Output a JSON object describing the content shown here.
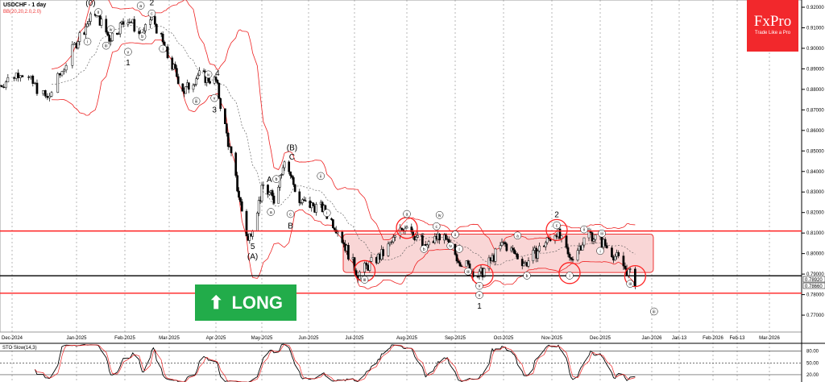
{
  "header": {
    "symbol_title": "USDCHF - 1 day",
    "indicator": "BB(20,20,2.0,2.0)"
  },
  "logo": {
    "brand": "FxPro",
    "tagline": "Trade Like a Pro",
    "color": "#f2282c"
  },
  "signal": {
    "label": "LONG",
    "icon": "arrow-up-icon",
    "color": "#22ac4a"
  },
  "oscillator": {
    "label": "STO Slow(14,3)",
    "levels": [
      "80.00",
      "50.00",
      "20.00"
    ],
    "level_values": [
      80,
      50,
      20
    ]
  },
  "chart_data": {
    "type": "candlestick",
    "ylim": [
      0.765,
      0.922
    ],
    "y_ticks": [
      "0.92000",
      "0.91000",
      "0.90000",
      "0.89000",
      "0.88000",
      "0.87000",
      "0.86000",
      "0.85000",
      "0.84000",
      "0.83000",
      "0.82000",
      "0.81000",
      "0.80000",
      "0.79000",
      "0.78000",
      "0.77000"
    ],
    "y_tick_values": [
      0.92,
      0.91,
      0.9,
      0.89,
      0.88,
      0.87,
      0.86,
      0.85,
      0.84,
      0.83,
      0.82,
      0.81,
      0.8,
      0.79,
      0.78,
      0.77
    ],
    "price_labels": [
      "0.78920",
      "0.78660"
    ],
    "x_ticks": [
      "Dec-2024",
      "Jan-2025",
      "Feb-2025",
      "Mar-2025",
      "Apr-2025",
      "May-2025",
      "Jun-2025",
      "Jul-2025",
      "Aug-2025",
      "Sep-2025",
      "Oct-2025",
      "Nov-2025",
      "Dec-2025",
      "Jan-2026",
      "Jan-13",
      "Feb-2026",
      "Feb-13",
      "Mar-2026"
    ],
    "x_tick_dates": [
      "2024-12-01",
      "2025-01-01",
      "2025-02-01",
      "2025-03-01",
      "2025-04-01",
      "2025-05-01",
      "2025-06-01",
      "2025-07-01",
      "2025-08-01",
      "2025-09-01",
      "2025-10-01",
      "2025-11-01",
      "2025-12-01",
      "2026-01-01",
      "2026-01-13",
      "2026-02-01",
      "2026-02-13",
      "2026-03-01"
    ],
    "price_path": [
      [
        "2024-11-25",
        0.882
      ],
      [
        "2024-12-05",
        0.889
      ],
      [
        "2024-12-18",
        0.875
      ],
      [
        "2025-01-02",
        0.905
      ],
      [
        "2025-01-13",
        0.918
      ],
      [
        "2025-01-22",
        0.905
      ],
      [
        "2025-02-03",
        0.915
      ],
      [
        "2025-02-12",
        0.905
      ],
      [
        "2025-02-18",
        0.916
      ],
      [
        "2025-02-28",
        0.896
      ],
      [
        "2025-03-11",
        0.879
      ],
      [
        "2025-03-20",
        0.887
      ],
      [
        "2025-04-01",
        0.884
      ],
      [
        "2025-04-22",
        0.806
      ],
      [
        "2025-05-02",
        0.833
      ],
      [
        "2025-05-09",
        0.826
      ],
      [
        "2025-05-16",
        0.847
      ],
      [
        "2025-05-26",
        0.825
      ],
      [
        "2025-06-10",
        0.822
      ],
      [
        "2025-06-20",
        0.812
      ],
      [
        "2025-07-03",
        0.79
      ],
      [
        "2025-07-18",
        0.8
      ],
      [
        "2025-08-01",
        0.815
      ],
      [
        "2025-08-12",
        0.802
      ],
      [
        "2025-08-22",
        0.809
      ],
      [
        "2025-09-05",
        0.796
      ],
      [
        "2025-09-16",
        0.789
      ],
      [
        "2025-10-01",
        0.805
      ],
      [
        "2025-10-15",
        0.795
      ],
      [
        "2025-11-04",
        0.811
      ],
      [
        "2025-11-12",
        0.797
      ],
      [
        "2025-11-24",
        0.81
      ],
      [
        "2025-12-03",
        0.805
      ],
      [
        "2025-12-12",
        0.797
      ],
      [
        "2025-12-22",
        0.7866
      ]
    ],
    "horizontal_lines": [
      {
        "price": 0.811,
        "color": "#ff2020"
      },
      {
        "price": 0.7892,
        "color": "#000000"
      },
      {
        "price": 0.7807,
        "color": "#ff2020"
      }
    ],
    "zone": {
      "from": "2025-07-01",
      "to": "2025-12-31",
      "low": 0.7908,
      "high": 0.8095,
      "color": "#f9d6d6"
    },
    "circles": [
      [
        "2025-07-07",
        0.7915
      ],
      [
        "2025-08-01",
        0.8125
      ],
      [
        "2025-09-18",
        0.7895
      ],
      [
        "2025-11-04",
        0.8115
      ],
      [
        "2025-11-12",
        0.7905
      ],
      [
        "2025-12-22",
        0.789
      ]
    ],
    "wave_labels": [
      {
        "date": "2025-01-10",
        "price": 0.9215,
        "text": "(0)",
        "circled": false
      },
      {
        "date": "2025-01-15",
        "price": 0.9168,
        "text": "ii",
        "circled": true
      },
      {
        "date": "2025-01-08",
        "price": 0.9025,
        "text": "i",
        "circled": true
      },
      {
        "date": "2025-01-20",
        "price": 0.9005,
        "text": "iii",
        "circled": true
      },
      {
        "date": "2025-01-23",
        "price": 0.9085,
        "text": "iv",
        "circled": true
      },
      {
        "date": "2025-02-03",
        "price": 0.8975,
        "text": "v",
        "circled": true
      },
      {
        "date": "2025-02-03",
        "price": 0.8925,
        "text": "1",
        "circled": false
      },
      {
        "date": "2025-02-11",
        "price": 0.92,
        "text": "a",
        "circled": true
      },
      {
        "date": "2025-02-18",
        "price": 0.9218,
        "text": "2",
        "circled": false
      },
      {
        "date": "2025-02-18",
        "price": 0.9162,
        "text": "c",
        "circled": true
      },
      {
        "date": "2025-02-12",
        "price": 0.905,
        "text": "b",
        "circled": true
      },
      {
        "date": "2025-02-25",
        "price": 0.899,
        "text": "i",
        "circled": true
      },
      {
        "date": "2025-03-19",
        "price": 0.8735,
        "text": "iii",
        "circled": true
      },
      {
        "date": "2025-03-27",
        "price": 0.8865,
        "text": "iv",
        "circled": true
      },
      {
        "date": "2025-03-31",
        "price": 0.875,
        "text": "v",
        "circled": true
      },
      {
        "date": "2025-03-31",
        "price": 0.8695,
        "text": "3",
        "circled": false
      },
      {
        "date": "2025-04-02",
        "price": 0.8875,
        "text": "4",
        "circled": false
      },
      {
        "date": "2025-04-25",
        "price": 0.803,
        "text": "5",
        "circled": false
      },
      {
        "date": "2025-04-25",
        "price": 0.798,
        "text": "(A)",
        "circled": false
      },
      {
        "date": "2025-05-06",
        "price": 0.8355,
        "text": "A",
        "circled": false
      },
      {
        "date": "2025-05-09",
        "price": 0.8355,
        "text": "b",
        "circled": true
      },
      {
        "date": "2025-05-07",
        "price": 0.8195,
        "text": "a",
        "circled": true
      },
      {
        "date": "2025-05-20",
        "price": 0.8185,
        "text": "c",
        "circled": true
      },
      {
        "date": "2025-05-20",
        "price": 0.813,
        "text": "B",
        "circled": false
      },
      {
        "date": "2025-05-21",
        "price": 0.851,
        "text": "(B)",
        "circled": false
      },
      {
        "date": "2025-05-21",
        "price": 0.8465,
        "text": "C",
        "circled": false
      },
      {
        "date": "2025-06-09",
        "price": 0.837,
        "text": "ii",
        "circled": true
      },
      {
        "date": "2025-06-13",
        "price": 0.819,
        "text": "i",
        "circled": true
      },
      {
        "date": "2025-07-07",
        "price": 0.7865,
        "text": "iii",
        "circled": true
      },
      {
        "date": "2025-08-01",
        "price": 0.8185,
        "text": "a",
        "circled": true
      },
      {
        "date": "2025-08-22",
        "price": 0.818,
        "text": "iv",
        "circled": true
      },
      {
        "date": "2025-08-20",
        "price": 0.8125,
        "text": "c",
        "circled": true
      },
      {
        "date": "2025-08-11",
        "price": 0.8085,
        "text": "c",
        "circled": false
      },
      {
        "date": "2025-08-12",
        "price": 0.8015,
        "text": "b",
        "circled": true
      },
      {
        "date": "2025-09-01",
        "price": 0.8085,
        "text": "ii",
        "circled": true
      },
      {
        "date": "2025-08-29",
        "price": 0.803,
        "text": "iv",
        "circled": true
      },
      {
        "date": "2025-09-02",
        "price": 0.8015,
        "text": "i",
        "circled": true
      },
      {
        "date": "2025-09-09",
        "price": 0.7905,
        "text": "iii",
        "circled": true
      },
      {
        "date": "2025-09-16",
        "price": 0.7835,
        "text": "v",
        "circled": true
      },
      {
        "date": "2025-09-16",
        "price": 0.779,
        "text": "v",
        "circled": true
      },
      {
        "date": "2025-09-16",
        "price": 0.774,
        "text": "1",
        "circled": false
      },
      {
        "date": "2025-10-10",
        "price": 0.808,
        "text": "a",
        "circled": true
      },
      {
        "date": "2025-10-16",
        "price": 0.7885,
        "text": "b",
        "circled": true
      },
      {
        "date": "2025-11-04",
        "price": 0.8185,
        "text": "2",
        "circled": false
      },
      {
        "date": "2025-11-04",
        "price": 0.813,
        "text": "c",
        "circled": true
      },
      {
        "date": "2025-11-12",
        "price": 0.7885,
        "text": "i",
        "circled": true
      },
      {
        "date": "2025-11-21",
        "price": 0.811,
        "text": "ii",
        "circled": true
      },
      {
        "date": "2025-12-02",
        "price": 0.809,
        "text": "iii",
        "circled": true
      },
      {
        "date": "2025-12-01",
        "price": 0.8005,
        "text": "i",
        "circled": true
      },
      {
        "date": "2025-12-19",
        "price": 0.7845,
        "text": "iii",
        "circled": true
      },
      {
        "date": "2026-01-02",
        "price": 0.771,
        "text": "iii",
        "circled": true
      }
    ]
  }
}
